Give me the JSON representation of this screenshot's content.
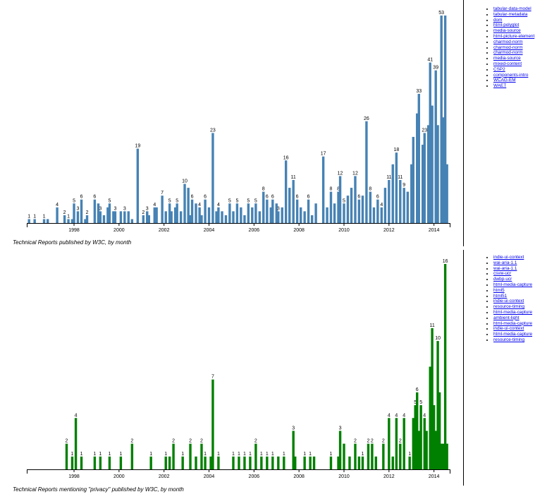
{
  "colors": {
    "top_bars": "#4682b4",
    "bottom_bars": "#008000",
    "axis": "#000000",
    "link": "#0000ee"
  },
  "chart_data": [
    {
      "type": "bar",
      "caption": "Technical Reports published by W3C, by month",
      "x_ticks": [
        "1998",
        "2000",
        "2002",
        "2004",
        "2006",
        "2008",
        "2010",
        "2012",
        "2014"
      ],
      "x_range": [
        1995.9,
        2014.7
      ],
      "ylim": [
        0,
        53
      ],
      "bars": [
        [
          1996.0,
          1,
          "1"
        ],
        [
          1996.25,
          1,
          "1"
        ],
        [
          1996.67,
          1,
          "1"
        ],
        [
          1996.83,
          1,
          ""
        ],
        [
          1997.25,
          4,
          "4"
        ],
        [
          1997.58,
          2,
          "2"
        ],
        [
          1997.75,
          1,
          "1"
        ],
        [
          1997.92,
          1,
          ""
        ],
        [
          1998.0,
          5,
          "5"
        ],
        [
          1998.17,
          3,
          "3"
        ],
        [
          1998.33,
          6,
          "6"
        ],
        [
          1998.5,
          1,
          ""
        ],
        [
          1998.58,
          2,
          "2"
        ],
        [
          1998.92,
          6,
          "6"
        ],
        [
          1999.08,
          5,
          ""
        ],
        [
          1999.17,
          3,
          "3"
        ],
        [
          1999.33,
          2,
          ""
        ],
        [
          1999.5,
          4,
          ""
        ],
        [
          1999.58,
          5,
          "5"
        ],
        [
          1999.75,
          3,
          ""
        ],
        [
          1999.83,
          3,
          "3"
        ],
        [
          2000.08,
          3,
          ""
        ],
        [
          2000.25,
          3,
          "3"
        ],
        [
          2000.42,
          3,
          ""
        ],
        [
          2000.58,
          1,
          ""
        ],
        [
          2000.83,
          19,
          "19"
        ],
        [
          2001.08,
          2,
          "2"
        ],
        [
          2001.25,
          3,
          "3"
        ],
        [
          2001.33,
          2,
          ""
        ],
        [
          2001.58,
          4,
          "4"
        ],
        [
          2001.67,
          4,
          ""
        ],
        [
          2001.92,
          7,
          "7"
        ],
        [
          2002.08,
          3,
          ""
        ],
        [
          2002.25,
          5,
          "5"
        ],
        [
          2002.33,
          3,
          ""
        ],
        [
          2002.5,
          4,
          ""
        ],
        [
          2002.58,
          5,
          "5"
        ],
        [
          2002.75,
          3,
          ""
        ],
        [
          2002.92,
          10,
          "10"
        ],
        [
          2003.08,
          9,
          ""
        ],
        [
          2003.17,
          2,
          ""
        ],
        [
          2003.25,
          6,
          "6"
        ],
        [
          2003.42,
          5,
          ""
        ],
        [
          2003.58,
          4,
          "4"
        ],
        [
          2003.67,
          2,
          ""
        ],
        [
          2003.83,
          6,
          "6"
        ],
        [
          2004.0,
          4,
          ""
        ],
        [
          2004.17,
          23,
          "23"
        ],
        [
          2004.33,
          3,
          ""
        ],
        [
          2004.42,
          4,
          "4"
        ],
        [
          2004.58,
          3,
          ""
        ],
        [
          2004.75,
          2,
          ""
        ],
        [
          2004.92,
          5,
          "5"
        ],
        [
          2005.08,
          3,
          ""
        ],
        [
          2005.25,
          5,
          "5"
        ],
        [
          2005.42,
          4,
          ""
        ],
        [
          2005.58,
          2,
          ""
        ],
        [
          2005.75,
          5,
          "5"
        ],
        [
          2005.92,
          4,
          ""
        ],
        [
          2006.08,
          5,
          "5"
        ],
        [
          2006.25,
          3,
          ""
        ],
        [
          2006.42,
          8,
          "8"
        ],
        [
          2006.58,
          6,
          "6"
        ],
        [
          2006.75,
          4,
          ""
        ],
        [
          2006.83,
          6,
          "6"
        ],
        [
          2007.0,
          5,
          ""
        ],
        [
          2007.08,
          3,
          "3"
        ],
        [
          2007.25,
          4,
          ""
        ],
        [
          2007.42,
          16,
          "16"
        ],
        [
          2007.58,
          9,
          ""
        ],
        [
          2007.75,
          11,
          "11"
        ],
        [
          2007.92,
          6,
          "6"
        ],
        [
          2008.08,
          4,
          ""
        ],
        [
          2008.25,
          3,
          ""
        ],
        [
          2008.42,
          6,
          "6"
        ],
        [
          2008.58,
          2,
          ""
        ],
        [
          2008.75,
          5,
          ""
        ],
        [
          2009.08,
          17,
          "17"
        ],
        [
          2009.25,
          4,
          ""
        ],
        [
          2009.42,
          8,
          "8"
        ],
        [
          2009.58,
          5,
          ""
        ],
        [
          2009.75,
          8,
          "8"
        ],
        [
          2009.83,
          12,
          "12"
        ],
        [
          2010.0,
          5,
          "5"
        ],
        [
          2010.17,
          7,
          ""
        ],
        [
          2010.33,
          9,
          ""
        ],
        [
          2010.5,
          12,
          "12"
        ],
        [
          2010.67,
          6,
          "6"
        ],
        [
          2010.83,
          7,
          ""
        ],
        [
          2011.0,
          26,
          "26"
        ],
        [
          2011.17,
          8,
          "8"
        ],
        [
          2011.33,
          4,
          ""
        ],
        [
          2011.5,
          6,
          "6"
        ],
        [
          2011.67,
          4,
          "4"
        ],
        [
          2011.83,
          9,
          ""
        ],
        [
          2012.0,
          11,
          "11"
        ],
        [
          2012.17,
          15,
          ""
        ],
        [
          2012.33,
          18,
          "18"
        ],
        [
          2012.5,
          11,
          "11"
        ],
        [
          2012.67,
          9,
          "9"
        ],
        [
          2012.83,
          8,
          ""
        ],
        [
          2013.0,
          15,
          ""
        ],
        [
          2013.08,
          22,
          ""
        ],
        [
          2013.25,
          28,
          ""
        ],
        [
          2013.33,
          33,
          "33"
        ],
        [
          2013.5,
          20,
          ""
        ],
        [
          2013.58,
          23,
          "23"
        ],
        [
          2013.75,
          25,
          ""
        ],
        [
          2013.83,
          41,
          "41"
        ],
        [
          2013.92,
          30,
          ""
        ],
        [
          2014.08,
          39,
          "39"
        ],
        [
          2014.17,
          25,
          ""
        ],
        [
          2014.33,
          53,
          "53"
        ],
        [
          2014.42,
          27,
          ""
        ],
        [
          2014.5,
          53,
          ""
        ],
        [
          2014.58,
          15,
          ""
        ]
      ]
    },
    {
      "type": "bar",
      "caption": "Technical Reports mentioning \"privacy\" published by W3C, by month",
      "x_ticks": [
        "1998",
        "2000",
        "2002",
        "2004",
        "2006",
        "2008",
        "2010",
        "2012",
        "2014"
      ],
      "x_range": [
        1995.9,
        2014.7
      ],
      "ylim": [
        0,
        16
      ],
      "bars": [
        [
          1997.67,
          2,
          "2"
        ],
        [
          1997.92,
          1,
          "1"
        ],
        [
          1998.08,
          4,
          "4"
        ],
        [
          1998.33,
          1,
          "1"
        ],
        [
          1998.92,
          1,
          "1"
        ],
        [
          1999.17,
          1,
          "1"
        ],
        [
          1999.58,
          1,
          "1"
        ],
        [
          2000.08,
          1,
          "1"
        ],
        [
          2000.58,
          2,
          "2"
        ],
        [
          2001.42,
          1,
          "1"
        ],
        [
          2002.08,
          1,
          "1"
        ],
        [
          2002.25,
          1,
          ""
        ],
        [
          2002.42,
          2,
          "2"
        ],
        [
          2002.83,
          1,
          "1"
        ],
        [
          2003.17,
          2,
          "2"
        ],
        [
          2003.42,
          1,
          ""
        ],
        [
          2003.67,
          2,
          "2"
        ],
        [
          2003.83,
          1,
          "1"
        ],
        [
          2004.08,
          1,
          ""
        ],
        [
          2004.17,
          7,
          "7"
        ],
        [
          2004.42,
          1,
          "1"
        ],
        [
          2005.08,
          1,
          "1"
        ],
        [
          2005.33,
          1,
          "1"
        ],
        [
          2005.58,
          1,
          "1"
        ],
        [
          2005.83,
          1,
          "1"
        ],
        [
          2006.08,
          2,
          "2"
        ],
        [
          2006.33,
          1,
          "1"
        ],
        [
          2006.58,
          1,
          "1"
        ],
        [
          2006.83,
          1,
          "1"
        ],
        [
          2007.08,
          1,
          ""
        ],
        [
          2007.33,
          1,
          "1"
        ],
        [
          2007.75,
          3,
          "3"
        ],
        [
          2007.83,
          1,
          ""
        ],
        [
          2008.25,
          1,
          "1"
        ],
        [
          2008.5,
          1,
          "1"
        ],
        [
          2008.67,
          1,
          ""
        ],
        [
          2009.42,
          1,
          "1"
        ],
        [
          2009.75,
          1,
          ""
        ],
        [
          2009.83,
          3,
          "3"
        ],
        [
          2010.0,
          2,
          ""
        ],
        [
          2010.25,
          1,
          ""
        ],
        [
          2010.5,
          2,
          "2"
        ],
        [
          2010.67,
          1,
          ""
        ],
        [
          2010.83,
          1,
          "1"
        ],
        [
          2011.08,
          2,
          "2"
        ],
        [
          2011.25,
          2,
          "2"
        ],
        [
          2011.42,
          1,
          ""
        ],
        [
          2011.75,
          2,
          "2"
        ],
        [
          2012.0,
          4,
          "4"
        ],
        [
          2012.17,
          1,
          ""
        ],
        [
          2012.33,
          4,
          "4"
        ],
        [
          2012.5,
          2,
          "2"
        ],
        [
          2012.67,
          4,
          "4"
        ],
        [
          2012.92,
          1,
          "1"
        ],
        [
          2013.08,
          4,
          ""
        ],
        [
          2013.17,
          5,
          "5"
        ],
        [
          2013.25,
          6,
          "6"
        ],
        [
          2013.33,
          3,
          ""
        ],
        [
          2013.42,
          5,
          "5"
        ],
        [
          2013.58,
          4,
          "4"
        ],
        [
          2013.67,
          3,
          ""
        ],
        [
          2013.83,
          8,
          ""
        ],
        [
          2013.92,
          11,
          "11"
        ],
        [
          2014.0,
          5,
          ""
        ],
        [
          2014.08,
          3,
          ""
        ],
        [
          2014.17,
          10,
          "10"
        ],
        [
          2014.25,
          6,
          ""
        ],
        [
          2014.33,
          2,
          ""
        ],
        [
          2014.42,
          2,
          ""
        ],
        [
          2014.5,
          16,
          "16"
        ],
        [
          2014.58,
          2,
          ""
        ]
      ]
    }
  ],
  "legends": [
    [
      "tabular-data-model",
      "tabular-metadata",
      "dom",
      "html-polyglot",
      "media-source",
      "html-picture-element",
      "charmod-norm",
      "charmod-norm",
      "charmod-norm",
      "media-source",
      "mixed-content",
      "CSP2",
      "components-intro",
      "WCAG-EM",
      "WAET"
    ],
    [
      "indie-ui-context",
      "wai-aria-1.1",
      "wai-aria-1.1",
      "csvw-ucr",
      "dwbp-ucr",
      "html-media-capture",
      "html5",
      "html51",
      "indie-ui-context",
      "resource-timing",
      "html-media-capture",
      "ambient-light",
      "html-media-capture",
      "indie-ui-context",
      "html-media-capture",
      "resource-timing"
    ]
  ]
}
